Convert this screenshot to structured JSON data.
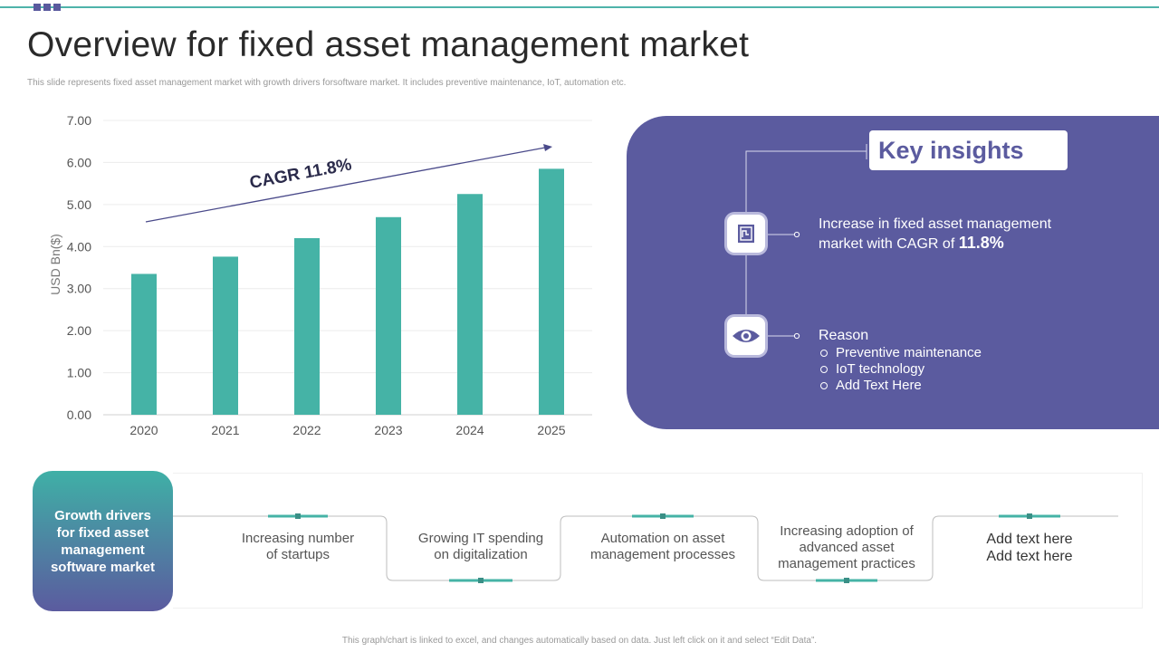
{
  "title": "Overview for fixed asset management market",
  "subtitle": "This slide represents fixed asset management market with growth drivers forsoftware market. It includes preventive maintenance, IoT, automation etc.",
  "chart_data": {
    "type": "bar",
    "categories": [
      "2020",
      "2021",
      "2022",
      "2023",
      "2024",
      "2025"
    ],
    "values": [
      3.35,
      3.76,
      4.2,
      4.7,
      5.25,
      5.85
    ],
    "ylabel": "USD Bn($)",
    "ylim": [
      0,
      7
    ],
    "yticks": [
      "0.00",
      "1.00",
      "2.00",
      "3.00",
      "4.00",
      "5.00",
      "6.00",
      "7.00"
    ],
    "annotation": "CAGR 11.8%",
    "bar_color": "#45b3a6",
    "grid": true
  },
  "insights": {
    "title": "Key insights",
    "item1_text": "Increase  in fixed asset management",
    "item1_text2": "market with CAGR of ",
    "item1_value": "11.8%",
    "reason_title": "Reason",
    "reasons": [
      "Preventive maintenance",
      "IoT technology",
      "Add Text Here"
    ],
    "panel_color": "#5b5b9f"
  },
  "growth": {
    "label": "Growth drivers\nfor fixed asset\nmanagement\nsoftware market",
    "drivers": [
      "Increasing number\nof startups",
      "Growing IT spending\non digitalization",
      "Automation on asset\nmanagement processes",
      "Increasing adoption of\nadvanced asset\nmanagement practices",
      "Add text here\nAdd text here"
    ]
  },
  "footer": "This graph/chart is linked to excel, and changes automatically based on data. Just left click on it and select “Edit Data”."
}
